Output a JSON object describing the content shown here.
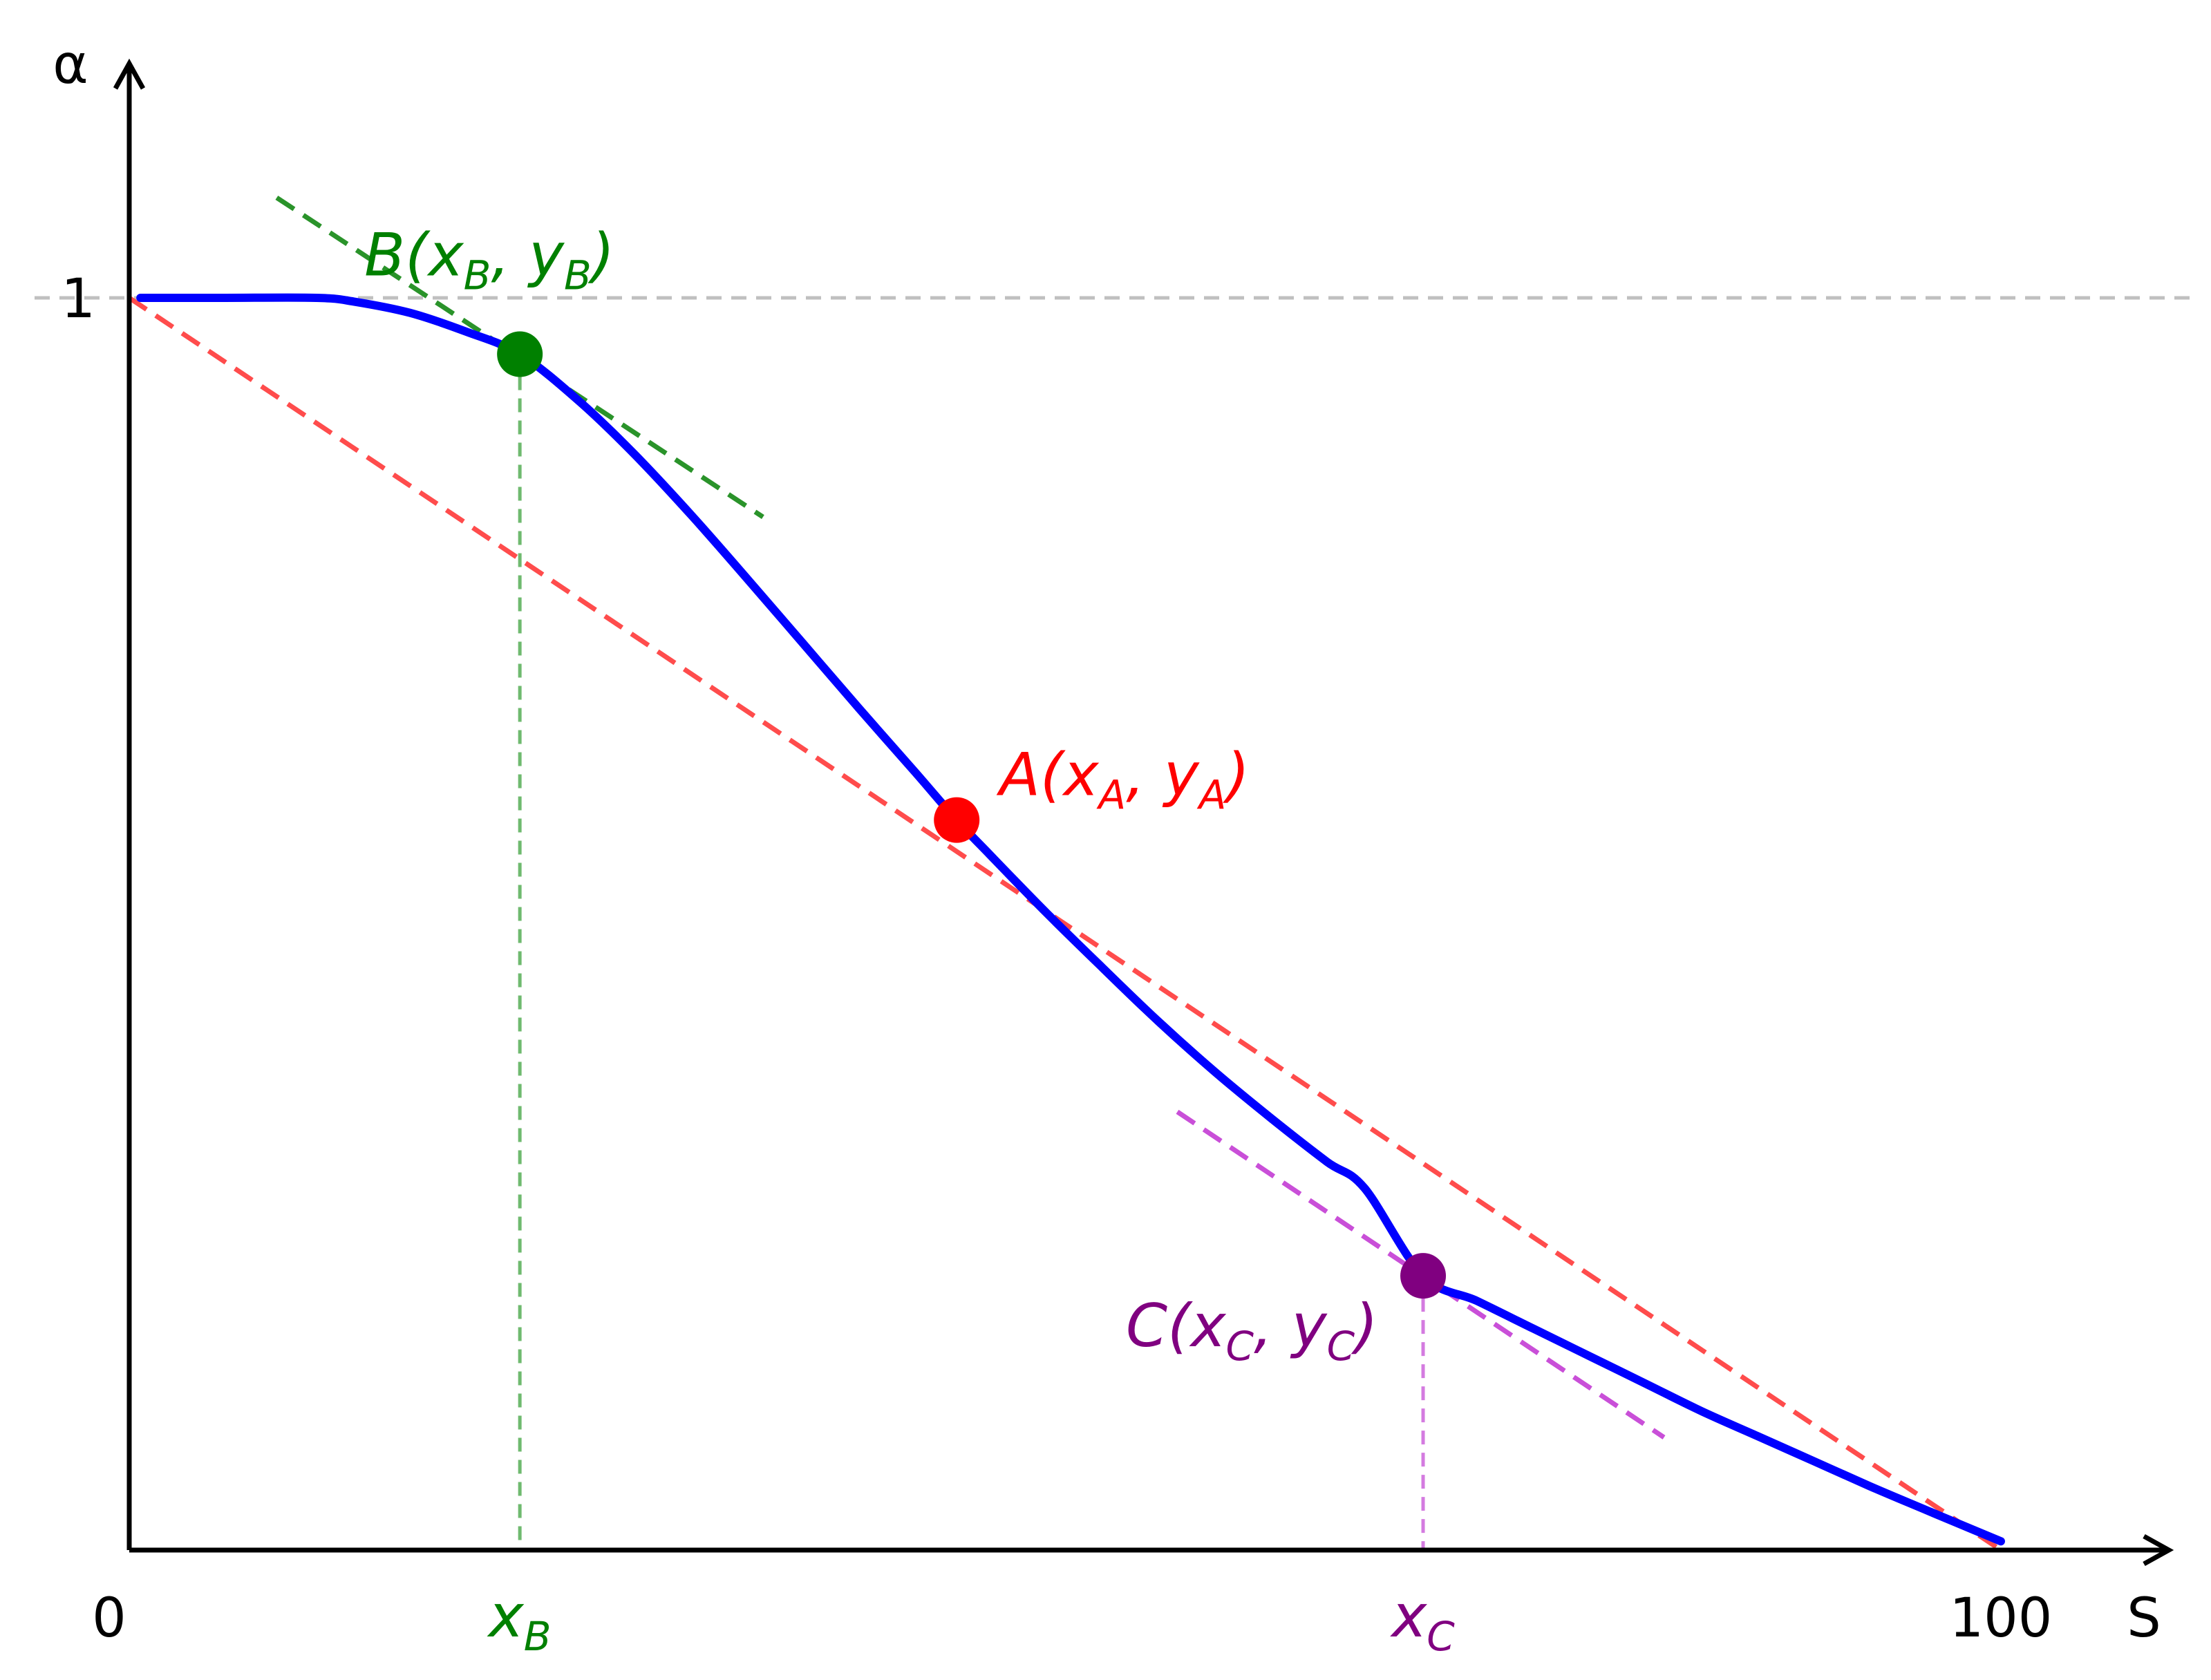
{
  "chart_data": {
    "type": "line",
    "xlabel": "S",
    "ylabel": "α",
    "xlim": [
      0,
      100
    ],
    "ylim": [
      0,
      1
    ],
    "grid": false,
    "legend": "none",
    "x_ticks": [
      {
        "value": 0,
        "label": "0"
      },
      {
        "value": 100,
        "label": "100"
      }
    ],
    "y_ticks": [
      {
        "value": 1,
        "label": "1"
      }
    ],
    "reference_line": {
      "y": 1,
      "style": "dashed",
      "color": "#c0c0c0"
    },
    "curve": {
      "color": "#0000ff",
      "x": [
        0,
        5,
        10,
        12,
        15,
        18,
        20.87,
        24,
        27,
        30,
        33,
        36,
        39,
        42,
        44.21,
        46,
        49,
        52,
        55,
        58,
        61,
        64,
        66,
        69.13,
        72,
        75,
        78,
        81,
        84,
        87,
        90,
        93,
        96,
        100
      ],
      "y": [
        1.0,
        1.0,
        1.0,
        0.997,
        0.988,
        0.973,
        0.955,
        0.918,
        0.875,
        0.827,
        0.776,
        0.724,
        0.672,
        0.621,
        0.583,
        0.555,
        0.509,
        0.465,
        0.422,
        0.382,
        0.345,
        0.31,
        0.289,
        0.219,
        0.199,
        0.177,
        0.155,
        0.133,
        0.111,
        0.091,
        0.071,
        0.051,
        0.032,
        0.007
      ]
    },
    "points": [
      {
        "id": "A",
        "x": 44.21,
        "y": 0.583,
        "color": "#ff0000",
        "label_main": "A(x",
        "sub1": "A",
        "label_mid": ", y",
        "sub2": "A",
        "label_end": ")"
      },
      {
        "id": "B",
        "x": 20.87,
        "y": 0.955,
        "color": "#008000",
        "label_main": "B(x",
        "sub1": "B",
        "label_mid": ", y",
        "sub2": "B",
        "label_end": ")"
      },
      {
        "id": "C",
        "x": 69.13,
        "y": 0.219,
        "color": "#800080",
        "label_main": "C(x",
        "sub1": "C",
        "label_mid": ", y",
        "sub2": "C",
        "label_end": ")"
      }
    ],
    "lines": [
      {
        "id": "secant-A",
        "color": "#ff4c4c",
        "style": "dashed",
        "x": [
          0,
          100
        ],
        "y": [
          1.0,
          0.0
        ]
      },
      {
        "id": "tangent-B",
        "color": "#2a932a",
        "style": "dashed",
        "x": [
          7.88,
          33.86
        ],
        "y": [
          1.08,
          0.825
        ]
      },
      {
        "id": "tangent-C",
        "color": "#c94fd8",
        "style": "dashed",
        "x": [
          56.0,
          82.0
        ],
        "y": [
          0.35,
          0.09
        ]
      },
      {
        "id": "drop-B",
        "color": "#6fba6f",
        "style": "dashed",
        "x": [
          20.87,
          20.87
        ],
        "y": [
          0.955,
          0
        ]
      },
      {
        "id": "drop-C",
        "color": "#d47be0",
        "style": "dashed",
        "x": [
          69.13,
          69.13
        ],
        "y": [
          0.219,
          0
        ]
      }
    ],
    "x_marks": [
      {
        "id": "xB",
        "x": 20.87,
        "base": "x",
        "sub": "B",
        "color": "#008000"
      },
      {
        "id": "xC",
        "x": 69.13,
        "base": "x",
        "sub": "C",
        "color": "#800080"
      }
    ]
  }
}
